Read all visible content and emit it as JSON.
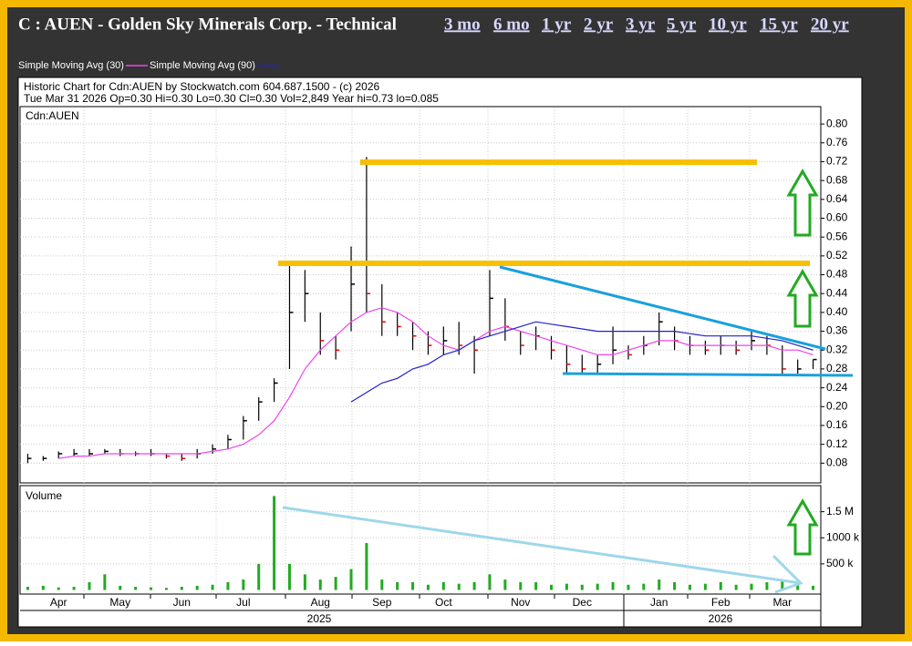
{
  "nav": [
    "3 mo",
    "6 mo",
    "1 yr",
    "2 yr",
    "3 yr",
    "5 yr",
    "10 yr",
    "15 yr",
    "20 yr"
  ],
  "chart_data": [
    {
      "type": "ohlc",
      "title": "C : AUEN - Golden Sky Minerals Corp. - Technical",
      "subtitle": [
        "Historic Chart for Cdn:AUEN by Stockwatch.com 604.687.1500 - (c) 2026",
        "Tue Mar 31 2026  Op=0.30  Hi=0.30  Lo=0.30  Cl=0.30  Vol=2,849  Year hi=0.73  lo=0.085"
      ],
      "label": "Cdn:AUEN",
      "categories": [
        null,
        null,
        "Apr",
        null,
        null,
        null,
        "May",
        null,
        null,
        null,
        "Jun",
        null,
        null,
        null,
        "Jul",
        null,
        null,
        null,
        null,
        "Aug",
        null,
        null,
        null,
        "Sep",
        null,
        null,
        null,
        "Oct",
        null,
        null,
        null,
        null,
        "Nov",
        null,
        null,
        null,
        "Dec",
        null,
        null,
        null,
        null,
        "Jan",
        null,
        null,
        null,
        "Feb",
        null,
        null,
        null,
        "Mar",
        null,
        null
      ],
      "x_groups": [
        "2025",
        "2026"
      ],
      "high": [
        0.1,
        0.095,
        0.105,
        0.11,
        0.11,
        0.11,
        0.11,
        0.105,
        0.11,
        0.1,
        0.1,
        0.11,
        0.12,
        0.14,
        0.18,
        0.22,
        0.26,
        0.5,
        0.49,
        0.4,
        0.35,
        0.54,
        0.73,
        0.46,
        0.4,
        0.38,
        0.36,
        0.37,
        0.38,
        0.35,
        0.49,
        0.43,
        0.36,
        0.37,
        0.35,
        0.33,
        0.31,
        0.31,
        0.37,
        0.33,
        0.35,
        0.4,
        0.37,
        0.35,
        0.34,
        0.35,
        0.34,
        0.36,
        0.35,
        0.33,
        0.3,
        0.3
      ],
      "low": [
        0.08,
        0.085,
        0.09,
        0.095,
        0.095,
        0.1,
        0.095,
        0.095,
        0.095,
        0.09,
        0.085,
        0.09,
        0.1,
        0.11,
        0.13,
        0.17,
        0.21,
        0.28,
        0.38,
        0.31,
        0.3,
        0.36,
        0.4,
        0.35,
        0.35,
        0.32,
        0.31,
        0.31,
        0.31,
        0.27,
        0.35,
        0.34,
        0.31,
        0.32,
        0.3,
        0.27,
        0.27,
        0.27,
        0.29,
        0.3,
        0.31,
        0.33,
        0.32,
        0.31,
        0.31,
        0.31,
        0.31,
        0.32,
        0.31,
        0.27,
        0.27,
        0.28
      ],
      "close": [
        0.09,
        0.09,
        0.1,
        0.1,
        0.1,
        0.105,
        0.1,
        0.1,
        0.1,
        0.095,
        0.09,
        0.1,
        0.11,
        0.13,
        0.17,
        0.21,
        0.25,
        0.4,
        0.44,
        0.34,
        0.32,
        0.46,
        0.44,
        0.38,
        0.37,
        0.35,
        0.33,
        0.34,
        0.33,
        0.32,
        0.43,
        0.37,
        0.33,
        0.35,
        0.32,
        0.29,
        0.28,
        0.29,
        0.32,
        0.31,
        0.33,
        0.38,
        0.34,
        0.33,
        0.32,
        0.33,
        0.32,
        0.34,
        0.33,
        0.28,
        0.28,
        0.3
      ],
      "series": [
        {
          "name": "Simple Moving Avg (30)",
          "color": "#ee44ee",
          "values": [
            null,
            null,
            0.09,
            0.095,
            0.095,
            0.1,
            0.1,
            0.1,
            0.1,
            0.1,
            0.1,
            0.1,
            0.105,
            0.11,
            0.12,
            0.14,
            0.17,
            0.22,
            0.28,
            0.32,
            0.35,
            0.38,
            0.4,
            0.41,
            0.4,
            0.38,
            0.35,
            0.33,
            0.32,
            0.34,
            0.36,
            0.37,
            0.36,
            0.35,
            0.34,
            0.33,
            0.32,
            0.31,
            0.31,
            0.32,
            0.33,
            0.34,
            0.34,
            0.33,
            0.33,
            0.33,
            0.33,
            0.33,
            0.33,
            0.32,
            0.32,
            0.31
          ]
        },
        {
          "name": "Simple Moving Avg (90)",
          "color": "#2222cc",
          "values": [
            null,
            null,
            null,
            null,
            null,
            null,
            null,
            null,
            null,
            null,
            null,
            null,
            null,
            null,
            null,
            null,
            null,
            null,
            null,
            null,
            null,
            0.21,
            0.23,
            0.25,
            0.26,
            0.28,
            0.29,
            0.31,
            0.32,
            0.34,
            0.35,
            0.36,
            0.37,
            0.38,
            0.375,
            0.37,
            0.365,
            0.36,
            0.36,
            0.36,
            0.36,
            0.36,
            0.36,
            0.355,
            0.35,
            0.35,
            0.35,
            0.35,
            0.345,
            0.34,
            0.33,
            0.32
          ]
        }
      ],
      "ylim": [
        0.04,
        0.835
      ],
      "yticks": [
        0.08,
        0.12,
        0.16,
        {
          "value": 0.2,
          "label": "0.20"
        },
        0.24,
        0.28,
        0.32,
        0.36,
        {
          "value": 0.4,
          "label": "0.40"
        },
        0.44,
        0.48,
        0.52,
        0.56,
        {
          "value": 0.6,
          "label": "0.60"
        },
        0.64,
        0.68,
        0.72,
        0.76,
        {
          "value": 0.8,
          "label": "0.80"
        }
      ],
      "grid": true
    },
    {
      "type": "bar",
      "label": "Volume",
      "color": "#22aa22",
      "values": [
        60000,
        80000,
        50000,
        60000,
        150000,
        300000,
        80000,
        60000,
        50000,
        40000,
        60000,
        80000,
        100000,
        150000,
        200000,
        500000,
        1800000,
        500000,
        300000,
        200000,
        250000,
        400000,
        900000,
        200000,
        150000,
        150000,
        100000,
        150000,
        120000,
        150000,
        300000,
        200000,
        150000,
        150000,
        100000,
        120000,
        100000,
        120000,
        150000,
        100000,
        120000,
        200000,
        150000,
        100000,
        120000,
        150000,
        100000,
        120000,
        150000,
        200000,
        120000,
        80000
      ],
      "ylim": [
        0,
        2000000
      ],
      "yticks": [
        {
          "value": 500000,
          "label": "500 k"
        },
        {
          "value": 1000000,
          "label": "1000 k"
        },
        {
          "value": 1500000,
          "label": "1.5 M"
        }
      ],
      "grid": true
    }
  ]
}
